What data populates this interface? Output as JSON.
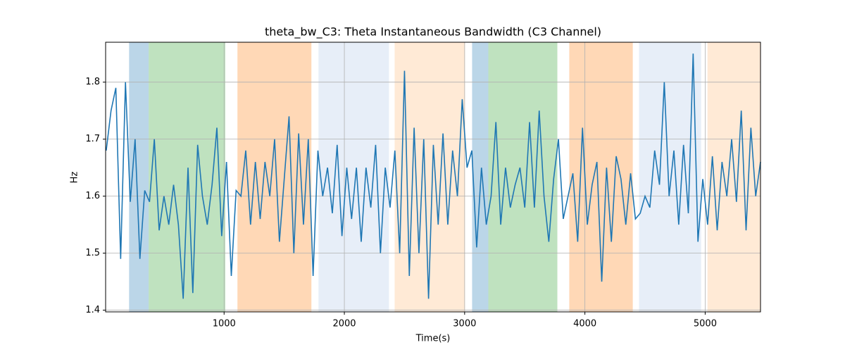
{
  "chart_data": {
    "type": "line",
    "title": "theta_bw_C3: Theta Instantaneous Bandwidth (C3 Channel)",
    "xlabel": "Time(s)",
    "ylabel": "Hz",
    "xlim": [
      15,
      5460
    ],
    "ylim": [
      1.397,
      1.87
    ],
    "xticks": [
      1000,
      2000,
      3000,
      4000,
      5000
    ],
    "yticks": [
      1.4,
      1.5,
      1.6,
      1.7,
      1.8
    ],
    "grid": true,
    "spans": [
      {
        "start": 210,
        "end": 373,
        "color": "#1f77b4",
        "opacity": 0.3
      },
      {
        "start": 373,
        "end": 1010,
        "color": "#2ca02c",
        "opacity": 0.3
      },
      {
        "start": 1111,
        "end": 1726,
        "color": "#ff7f0e",
        "opacity": 0.3
      },
      {
        "start": 1785,
        "end": 2371,
        "color": "#aec7e8",
        "opacity": 0.3
      },
      {
        "start": 2418,
        "end": 3003,
        "color": "#ffbb78",
        "opacity": 0.3
      },
      {
        "start": 3062,
        "end": 3197,
        "color": "#1f77b4",
        "opacity": 0.3
      },
      {
        "start": 3197,
        "end": 3771,
        "color": "#2ca02c",
        "opacity": 0.3
      },
      {
        "start": 3870,
        "end": 4398,
        "color": "#ff7f0e",
        "opacity": 0.3
      },
      {
        "start": 4450,
        "end": 4966,
        "color": "#aec7e8",
        "opacity": 0.3
      },
      {
        "start": 5019,
        "end": 5460,
        "color": "#ffbb78",
        "opacity": 0.3
      }
    ],
    "x": [
      20,
      60,
      100,
      140,
      180,
      220,
      260,
      300,
      340,
      380,
      420,
      460,
      500,
      540,
      580,
      620,
      660,
      700,
      740,
      780,
      820,
      860,
      900,
      940,
      980,
      1020,
      1060,
      1100,
      1140,
      1180,
      1220,
      1260,
      1300,
      1340,
      1380,
      1420,
      1460,
      1500,
      1540,
      1580,
      1620,
      1660,
      1700,
      1740,
      1780,
      1820,
      1860,
      1900,
      1940,
      1980,
      2020,
      2060,
      2100,
      2140,
      2180,
      2220,
      2260,
      2300,
      2340,
      2380,
      2420,
      2460,
      2500,
      2540,
      2580,
      2620,
      2660,
      2700,
      2740,
      2780,
      2820,
      2860,
      2900,
      2940,
      2980,
      3020,
      3060,
      3100,
      3140,
      3180,
      3220,
      3260,
      3300,
      3340,
      3380,
      3420,
      3460,
      3500,
      3540,
      3580,
      3620,
      3660,
      3700,
      3740,
      3780,
      3820,
      3860,
      3900,
      3940,
      3980,
      4020,
      4060,
      4100,
      4140,
      4180,
      4220,
      4260,
      4300,
      4340,
      4380,
      4420,
      4460,
      4500,
      4540,
      4580,
      4620,
      4660,
      4700,
      4740,
      4780,
      4820,
      4860,
      4900,
      4940,
      4980,
      5020,
      5060,
      5100,
      5140,
      5180,
      5220,
      5260,
      5300,
      5340,
      5380,
      5420,
      5460
    ],
    "series": [
      {
        "color": "#1f77b4",
        "values": [
          1.68,
          1.75,
          1.79,
          1.49,
          1.8,
          1.59,
          1.7,
          1.49,
          1.61,
          1.59,
          1.7,
          1.54,
          1.6,
          1.55,
          1.62,
          1.55,
          1.42,
          1.65,
          1.43,
          1.69,
          1.6,
          1.55,
          1.62,
          1.72,
          1.53,
          1.66,
          1.46,
          1.61,
          1.6,
          1.68,
          1.55,
          1.66,
          1.56,
          1.66,
          1.6,
          1.7,
          1.52,
          1.63,
          1.74,
          1.5,
          1.71,
          1.55,
          1.7,
          1.46,
          1.68,
          1.6,
          1.65,
          1.57,
          1.69,
          1.53,
          1.65,
          1.56,
          1.65,
          1.52,
          1.65,
          1.58,
          1.69,
          1.5,
          1.65,
          1.58,
          1.68,
          1.5,
          1.82,
          1.46,
          1.72,
          1.5,
          1.7,
          1.42,
          1.69,
          1.55,
          1.71,
          1.55,
          1.68,
          1.6,
          1.77,
          1.65,
          1.68,
          1.51,
          1.65,
          1.55,
          1.6,
          1.73,
          1.55,
          1.65,
          1.58,
          1.62,
          1.65,
          1.58,
          1.73,
          1.58,
          1.75,
          1.6,
          1.52,
          1.63,
          1.7,
          1.56,
          1.6,
          1.64,
          1.52,
          1.72,
          1.55,
          1.62,
          1.66,
          1.45,
          1.65,
          1.52,
          1.67,
          1.63,
          1.55,
          1.64,
          1.56,
          1.57,
          1.6,
          1.58,
          1.68,
          1.62,
          1.8,
          1.6,
          1.68,
          1.55,
          1.69,
          1.57,
          1.85,
          1.52,
          1.63,
          1.55,
          1.67,
          1.54,
          1.66,
          1.6,
          1.7,
          1.59,
          1.75,
          1.54,
          1.72,
          1.6,
          1.66
        ]
      }
    ]
  }
}
